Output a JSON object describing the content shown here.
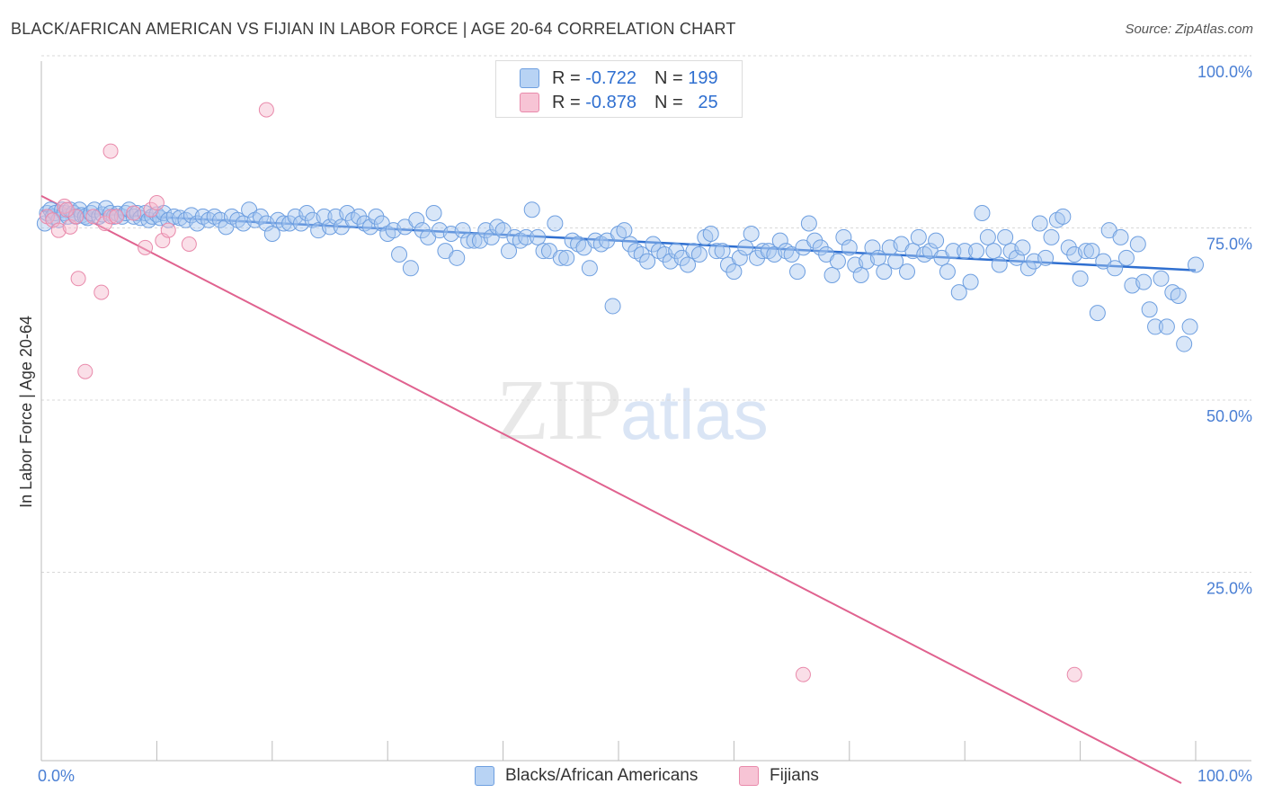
{
  "title": "BLACK/AFRICAN AMERICAN VS FIJIAN IN LABOR FORCE | AGE 20-64 CORRELATION CHART",
  "source": "Source: ZipAtlas.com",
  "watermark": {
    "zip": "ZIP",
    "atlas": "atlas"
  },
  "legend_top": [
    {
      "r_label": "R =",
      "r_value": "-0.722",
      "n_label": "N =",
      "n_value": "199"
    },
    {
      "r_label": "R =",
      "r_value": "-0.878",
      "n_label": "N =",
      "n_value": "25"
    }
  ],
  "legend_bottom": [
    "Blacks/African Americans",
    "Fijians"
  ],
  "chart_data": {
    "type": "scatter",
    "title": "BLACK/AFRICAN AMERICAN VS FIJIAN IN LABOR FORCE | AGE 20-64 CORRELATION CHART",
    "xlabel": "",
    "ylabel": "In Labor Force | Age 20-64",
    "xlim": [
      0,
      100
    ],
    "ylim": [
      0,
      100
    ],
    "x_tick_labels": [
      "0.0%",
      "100.0%"
    ],
    "y_ticks": [
      25,
      50,
      75,
      100
    ],
    "y_tick_labels": [
      "25.0%",
      "50.0%",
      "75.0%",
      "100.0%"
    ],
    "grid": true,
    "legend_position": "top-center",
    "colors": {
      "blue": "#5b93e0",
      "blue_fill": "#a9c8f0",
      "pink": "#e8709a",
      "pink_fill": "#f4b9cd"
    },
    "series": [
      {
        "name": "Blacks/African Americans",
        "color": "#5b93e0",
        "trend": {
          "x": [
            0,
            100
          ],
          "y": [
            79.8,
            71.2
          ]
        },
        "points": [
          [
            0.3,
            78
          ],
          [
            0.5,
            79.5
          ],
          [
            0.8,
            80
          ],
          [
            1,
            79
          ],
          [
            1.2,
            79.5
          ],
          [
            1.5,
            78.5
          ],
          [
            1.8,
            80
          ],
          [
            2,
            79.5
          ],
          [
            2.3,
            79
          ],
          [
            2.5,
            80
          ],
          [
            2.8,
            79.5
          ],
          [
            3,
            79
          ],
          [
            3.3,
            80
          ],
          [
            3.5,
            79.2
          ],
          [
            3.8,
            79
          ],
          [
            4,
            78.8
          ],
          [
            4.3,
            79.5
          ],
          [
            4.6,
            80
          ],
          [
            5,
            79
          ],
          [
            5.3,
            79.3
          ],
          [
            5.6,
            80.2
          ],
          [
            6,
            79.5
          ],
          [
            6.3,
            79
          ],
          [
            6.6,
            79.4
          ],
          [
            7,
            79
          ],
          [
            7.3,
            79.5
          ],
          [
            7.6,
            80
          ],
          [
            8,
            79
          ],
          [
            8.3,
            79.5
          ],
          [
            8.6,
            78.8
          ],
          [
            9,
            79.5
          ],
          [
            9.3,
            78.5
          ],
          [
            9.6,
            79
          ],
          [
            10,
            79.3
          ],
          [
            10.3,
            78.8
          ],
          [
            10.6,
            79.5
          ],
          [
            11,
            78.5
          ],
          [
            11.5,
            79
          ],
          [
            12,
            78.8
          ],
          [
            12.5,
            78.5
          ],
          [
            13,
            79.2
          ],
          [
            13.5,
            78
          ],
          [
            14,
            79
          ],
          [
            14.5,
            78.5
          ],
          [
            15,
            79
          ],
          [
            15.5,
            78.5
          ],
          [
            16,
            77.5
          ],
          [
            16.5,
            79
          ],
          [
            17,
            78.5
          ],
          [
            17.5,
            78
          ],
          [
            18,
            80
          ],
          [
            18.5,
            78.5
          ],
          [
            19,
            79
          ],
          [
            19.5,
            78
          ],
          [
            20,
            76.5
          ],
          [
            20.5,
            78.5
          ],
          [
            21,
            78
          ],
          [
            21.5,
            78
          ],
          [
            22,
            79
          ],
          [
            22.5,
            78
          ],
          [
            23,
            79.5
          ],
          [
            23.5,
            78.5
          ],
          [
            24,
            77
          ],
          [
            24.5,
            79
          ],
          [
            25,
            77.5
          ],
          [
            25.5,
            79
          ],
          [
            26,
            77.5
          ],
          [
            26.5,
            79.5
          ],
          [
            27,
            78.5
          ],
          [
            27.5,
            79
          ],
          [
            28,
            78
          ],
          [
            28.5,
            77.5
          ],
          [
            29,
            79
          ],
          [
            29.5,
            78
          ],
          [
            30,
            76.5
          ],
          [
            30.5,
            77
          ],
          [
            31,
            73.5
          ],
          [
            31.5,
            77.5
          ],
          [
            32,
            71.5
          ],
          [
            32.5,
            78.5
          ],
          [
            33,
            77
          ],
          [
            33.5,
            76
          ],
          [
            34,
            79.5
          ],
          [
            34.5,
            77
          ],
          [
            35,
            74
          ],
          [
            35.5,
            76.5
          ],
          [
            36,
            73
          ],
          [
            36.5,
            77
          ],
          [
            37,
            75.5
          ],
          [
            37.5,
            75.5
          ],
          [
            38,
            75.5
          ],
          [
            38.5,
            77
          ],
          [
            39,
            76
          ],
          [
            39.5,
            77.5
          ],
          [
            40,
            77
          ],
          [
            40.5,
            74
          ],
          [
            41,
            76
          ],
          [
            41.5,
            75.5
          ],
          [
            42,
            76
          ],
          [
            42.5,
            80
          ],
          [
            43,
            76
          ],
          [
            43.5,
            74
          ],
          [
            44,
            74
          ],
          [
            44.5,
            78
          ],
          [
            45,
            73
          ],
          [
            45.5,
            73
          ],
          [
            46,
            75.5
          ],
          [
            46.5,
            75
          ],
          [
            47,
            74.5
          ],
          [
            47.5,
            71.5
          ],
          [
            48,
            75.5
          ],
          [
            48.5,
            75
          ],
          [
            49,
            75.5
          ],
          [
            49.5,
            66
          ],
          [
            50,
            76.5
          ],
          [
            50.5,
            77
          ],
          [
            51,
            75
          ],
          [
            51.5,
            74
          ],
          [
            52,
            73.5
          ],
          [
            52.5,
            72.5
          ],
          [
            53,
            75
          ],
          [
            53.5,
            74
          ],
          [
            54,
            73.5
          ],
          [
            54.5,
            72.5
          ],
          [
            55,
            74
          ],
          [
            55.5,
            73
          ],
          [
            56,
            72
          ],
          [
            56.5,
            74
          ],
          [
            57,
            73.5
          ],
          [
            57.5,
            76
          ],
          [
            58,
            76.5
          ],
          [
            58.5,
            74
          ],
          [
            59,
            74
          ],
          [
            59.5,
            72
          ],
          [
            60,
            71
          ],
          [
            60.5,
            73
          ],
          [
            61,
            74.5
          ],
          [
            61.5,
            76.5
          ],
          [
            62,
            73
          ],
          [
            62.5,
            74
          ],
          [
            63,
            74
          ],
          [
            63.5,
            73.5
          ],
          [
            64,
            75.5
          ],
          [
            64.5,
            74
          ],
          [
            65,
            73.5
          ],
          [
            65.5,
            71
          ],
          [
            66,
            74.5
          ],
          [
            66.5,
            78
          ],
          [
            67,
            75.5
          ],
          [
            67.5,
            74.5
          ],
          [
            68,
            73.5
          ],
          [
            68.5,
            70.5
          ],
          [
            69,
            72.5
          ],
          [
            69.5,
            76
          ],
          [
            70,
            74.5
          ],
          [
            70.5,
            72
          ],
          [
            71,
            70.5
          ],
          [
            71.5,
            72.5
          ],
          [
            72,
            74.5
          ],
          [
            72.5,
            73
          ],
          [
            73,
            71
          ],
          [
            73.5,
            74.5
          ],
          [
            74,
            72.5
          ],
          [
            74.5,
            75
          ],
          [
            75,
            71
          ],
          [
            75.5,
            74
          ],
          [
            76,
            76
          ],
          [
            76.5,
            73.5
          ],
          [
            77,
            74
          ],
          [
            77.5,
            75.5
          ],
          [
            78,
            73
          ],
          [
            78.5,
            71
          ],
          [
            79,
            74
          ],
          [
            79.5,
            68
          ],
          [
            80,
            74
          ],
          [
            80.5,
            69.5
          ],
          [
            81,
            74
          ],
          [
            81.5,
            79.5
          ],
          [
            82,
            76
          ],
          [
            82.5,
            74
          ],
          [
            83,
            72
          ],
          [
            83.5,
            76
          ],
          [
            84,
            74
          ],
          [
            84.5,
            73
          ],
          [
            85,
            74.5
          ],
          [
            85.5,
            71.5
          ],
          [
            86,
            72.5
          ],
          [
            86.5,
            78
          ],
          [
            87,
            73
          ],
          [
            87.5,
            76
          ],
          [
            88,
            78.5
          ],
          [
            88.5,
            79
          ],
          [
            89,
            74.5
          ],
          [
            89.5,
            73.5
          ],
          [
            90,
            70
          ],
          [
            90.5,
            74
          ],
          [
            91,
            74
          ],
          [
            91.5,
            65
          ],
          [
            92,
            72.5
          ],
          [
            92.5,
            77
          ],
          [
            93,
            71.5
          ],
          [
            93.5,
            76
          ],
          [
            94,
            73
          ],
          [
            94.5,
            69
          ],
          [
            95,
            75
          ],
          [
            95.5,
            69.5
          ],
          [
            96,
            65.5
          ],
          [
            96.5,
            63
          ],
          [
            97,
            70
          ],
          [
            97.5,
            63
          ],
          [
            98,
            68
          ],
          [
            98.5,
            67.5
          ],
          [
            99,
            60.5
          ],
          [
            99.5,
            63
          ],
          [
            100,
            72
          ]
        ]
      },
      {
        "name": "Fijians",
        "color": "#e8709a",
        "trend": {
          "x": [
            0,
            100
          ],
          "y": [
            82,
            0
          ]
        },
        "points": [
          [
            0.5,
            79
          ],
          [
            1,
            78.5
          ],
          [
            1.5,
            77
          ],
          [
            2,
            80.5
          ],
          [
            2.5,
            77.5
          ],
          [
            3,
            79
          ],
          [
            3.2,
            70
          ],
          [
            3.8,
            56.5
          ],
          [
            4.5,
            79
          ],
          [
            5.2,
            68
          ],
          [
            5.5,
            78
          ],
          [
            6,
            79
          ],
          [
            6.5,
            79
          ],
          [
            9,
            74.5
          ],
          [
            9.5,
            80
          ],
          [
            10,
            81
          ],
          [
            10.5,
            75.5
          ],
          [
            11,
            77
          ],
          [
            12.8,
            75
          ],
          [
            19.5,
            94.5
          ],
          [
            66,
            12.5
          ],
          [
            89.5,
            12.5
          ],
          [
            6,
            88.5
          ],
          [
            2.2,
            80
          ],
          [
            8,
            79.5
          ]
        ]
      }
    ]
  }
}
